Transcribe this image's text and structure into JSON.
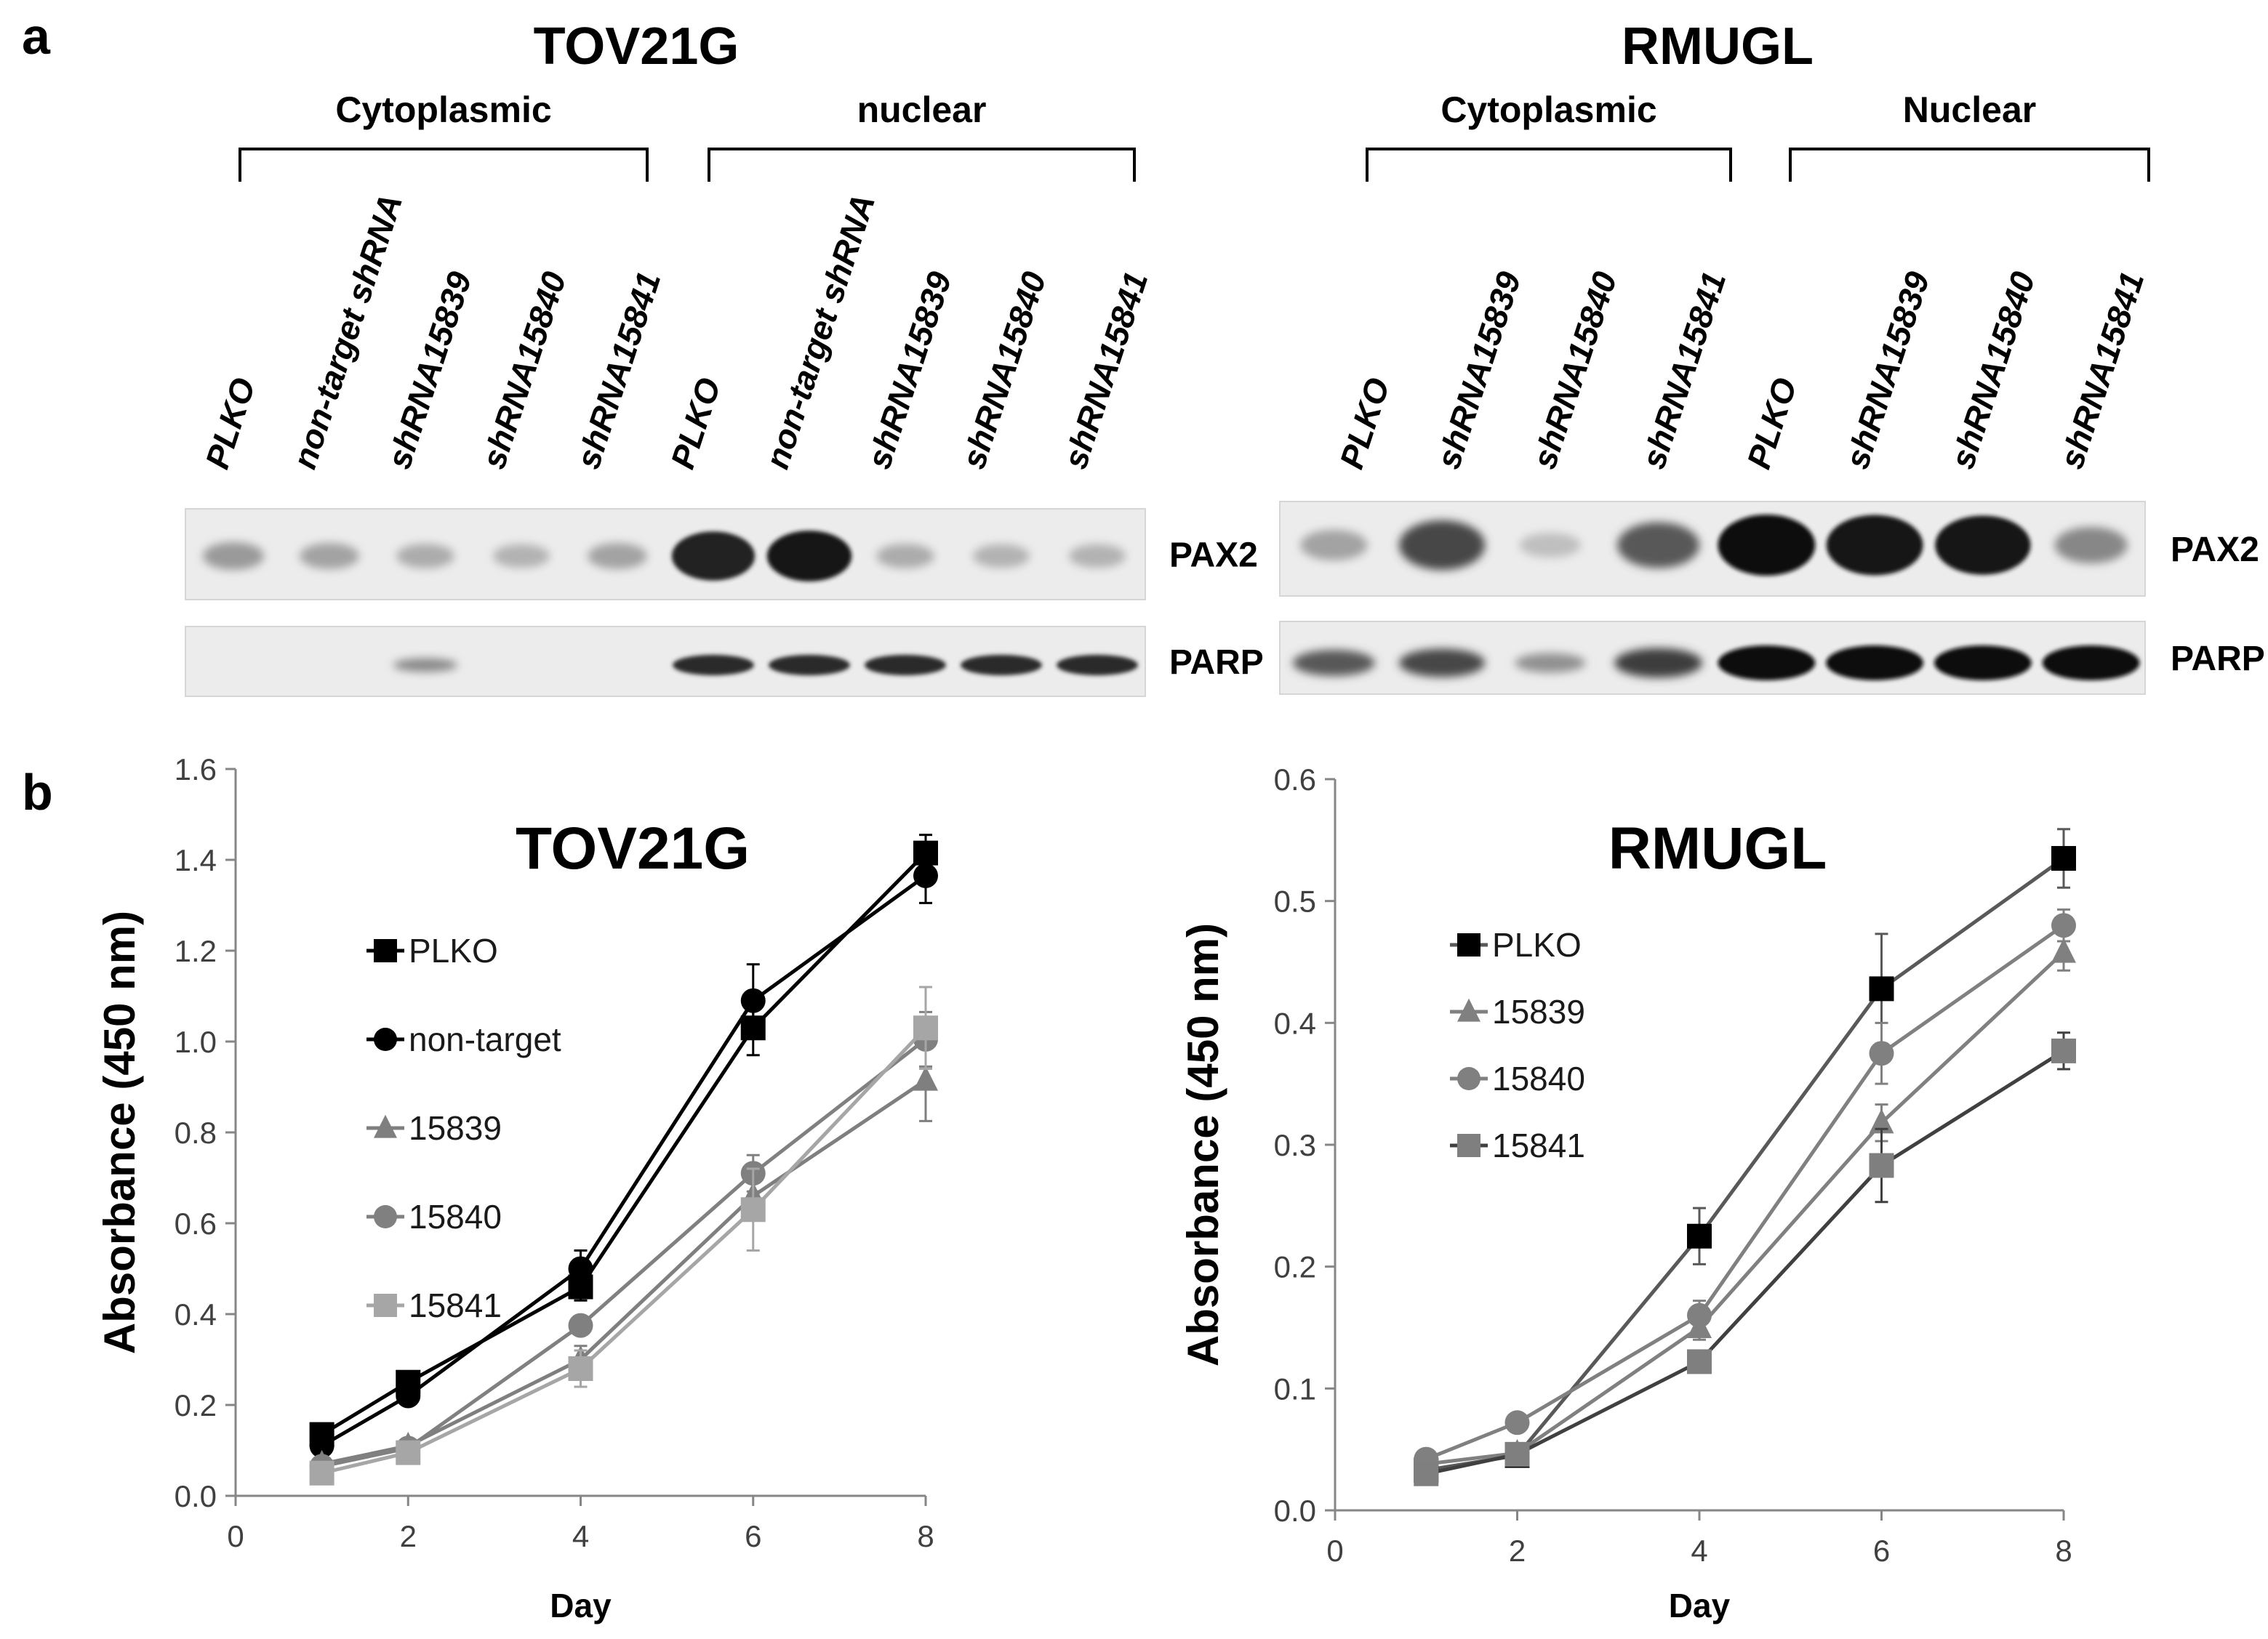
{
  "panel_a": {
    "label": "a",
    "blots": [
      {
        "cell_line": "TOV21G",
        "groups": [
          {
            "label": "Cytoplasmic",
            "lanes": [
              "PLKO",
              "non-target shRNA",
              "shRNA15839",
              "shRNA15840",
              "shRNA15841"
            ]
          },
          {
            "label": "nuclear",
            "lanes": [
              "PLKO",
              "non-target shRNA",
              "shRNA15839",
              "shRNA15840",
              "shRNA15841"
            ]
          }
        ],
        "markers": [
          "PAX2",
          "PARP"
        ],
        "band_intensity": {
          "PAX2": [
            0.25,
            0.2,
            0.15,
            0.12,
            0.2,
            0.9,
            0.95,
            0.15,
            0.12,
            0.12
          ],
          "PARP": [
            0.0,
            0.0,
            0.35,
            0.0,
            0.0,
            0.85,
            0.85,
            0.85,
            0.85,
            0.85
          ]
        }
      },
      {
        "cell_line": "RMUGL",
        "groups": [
          {
            "label": "Cytoplasmic",
            "lanes": [
              "PLKO",
              "shRNA15839",
              "shRNA15840",
              "shRNA15841"
            ]
          },
          {
            "label": "Nuclear",
            "lanes": [
              "PLKO",
              "shRNA15839",
              "shRNA15840",
              "shRNA15841"
            ]
          }
        ],
        "markers": [
          "PAX2",
          "PARP"
        ],
        "band_intensity": {
          "PAX2": [
            0.2,
            0.7,
            0.05,
            0.6,
            1.0,
            0.98,
            0.95,
            0.35
          ],
          "PARP": [
            0.6,
            0.7,
            0.3,
            0.75,
            1.0,
            1.0,
            1.0,
            1.0
          ]
        }
      }
    ]
  },
  "panel_b": {
    "label": "b"
  },
  "chart_data": [
    {
      "type": "line",
      "title": "TOV21G",
      "xlabel": "Day",
      "ylabel": "Absorbance (450 nm)",
      "xlim": [
        0,
        8
      ],
      "ylim": [
        0,
        1.6
      ],
      "xticks": [
        "0",
        "2",
        "4",
        "6",
        "8"
      ],
      "yticks": [
        "0.0",
        "0.2",
        "0.4",
        "0.6",
        "0.8",
        "1.0",
        "1.2",
        "1.4",
        "1.6"
      ],
      "x": [
        1,
        2,
        4,
        6,
        8
      ],
      "legend_position": "center-left",
      "series": [
        {
          "name": "PLKO",
          "marker": "square",
          "color": "#000000",
          "values": [
            0.135,
            0.25,
            0.46,
            1.03,
            1.415
          ],
          "errors": [
            0.02,
            0.02,
            0.03,
            0.06,
            0.04
          ]
        },
        {
          "name": "non-target",
          "marker": "circle",
          "color": "#000000",
          "values": [
            0.11,
            0.22,
            0.5,
            1.09,
            1.365
          ],
          "errors": [
            0.02,
            0.02,
            0.04,
            0.08,
            0.06
          ]
        },
        {
          "name": "15839",
          "marker": "triangle",
          "color": "#7f7f7f",
          "values": [
            0.07,
            0.11,
            0.3,
            0.66,
            0.915
          ],
          "errors": [
            0.01,
            0.01,
            0.03,
            0.05,
            0.09
          ]
        },
        {
          "name": "15840",
          "marker": "circle",
          "color": "#808080",
          "values": [
            0.065,
            0.105,
            0.375,
            0.71,
            1.005
          ],
          "errors": [
            0.01,
            0.01,
            0.02,
            0.04,
            0.06
          ]
        },
        {
          "name": "15841",
          "marker": "square",
          "color": "#a6a6a6",
          "values": [
            0.05,
            0.095,
            0.28,
            0.63,
            1.03
          ],
          "errors": [
            0.01,
            0.01,
            0.04,
            0.09,
            0.09
          ]
        }
      ]
    },
    {
      "type": "line",
      "title": "RMUGL",
      "xlabel": "Day",
      "ylabel": "Absorbance (450 nm)",
      "xlim": [
        0,
        8
      ],
      "ylim": [
        0,
        0.6
      ],
      "xticks": [
        "0",
        "2",
        "4",
        "6",
        "8"
      ],
      "yticks": [
        "0.0",
        "0.1",
        "0.2",
        "0.3",
        "0.4",
        "0.5",
        "0.6"
      ],
      "x": [
        1,
        2,
        4,
        6,
        8
      ],
      "legend_position": "center-left",
      "series": [
        {
          "name": "PLKO",
          "marker": "square",
          "color": "#000000",
          "lineColor": "#595959",
          "values": [
            0.033,
            0.045,
            0.225,
            0.428,
            0.535
          ],
          "errors": [
            0.005,
            0.005,
            0.023,
            0.045,
            0.024
          ]
        },
        {
          "name": "15839",
          "marker": "triangle",
          "color": "#808080",
          "values": [
            0.038,
            0.047,
            0.15,
            0.318,
            0.458
          ],
          "errors": [
            0.005,
            0.005,
            0.01,
            0.015,
            0.015
          ]
        },
        {
          "name": "15840",
          "marker": "circle",
          "color": "#808080",
          "values": [
            0.042,
            0.072,
            0.16,
            0.375,
            0.48
          ],
          "errors": [
            0.005,
            0.005,
            0.012,
            0.025,
            0.013
          ]
        },
        {
          "name": "15841",
          "marker": "square",
          "color": "#7f7f7f",
          "lineColor": "#404040",
          "values": [
            0.03,
            0.046,
            0.122,
            0.283,
            0.377
          ],
          "errors": [
            0.005,
            0.005,
            0.008,
            0.03,
            0.015
          ]
        }
      ]
    }
  ]
}
